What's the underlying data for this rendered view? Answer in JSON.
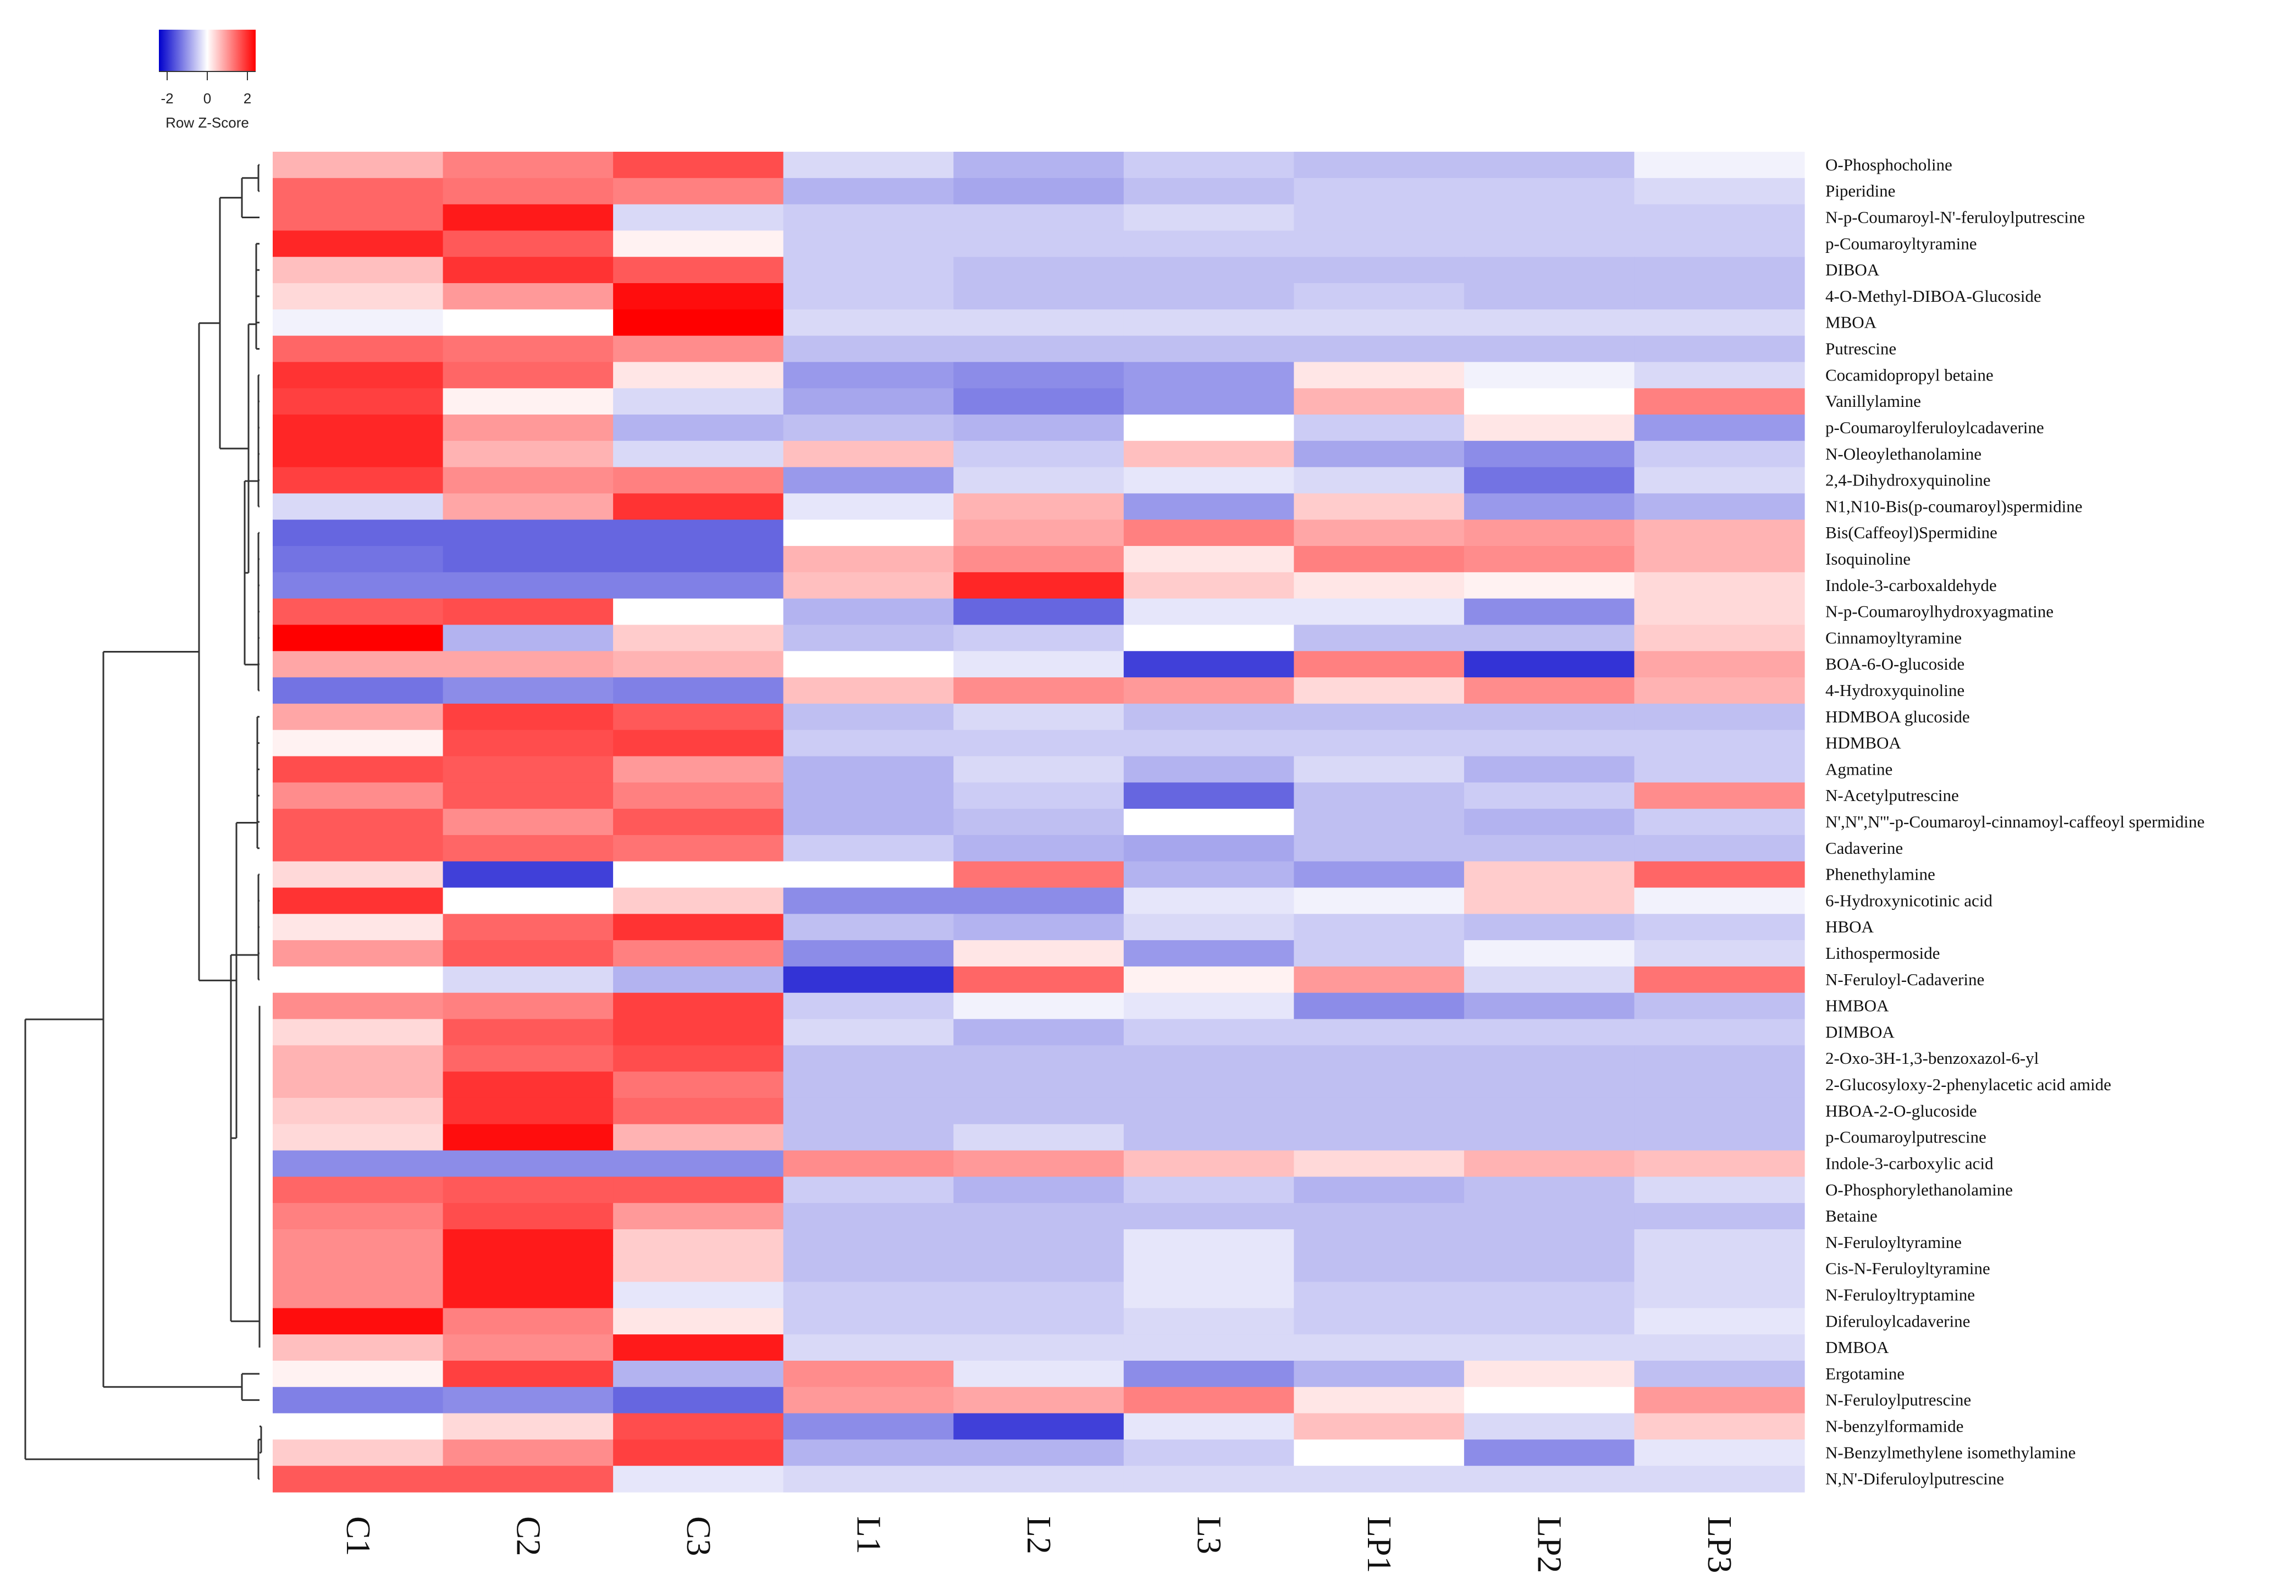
{
  "chart_data": {
    "type": "heatmap",
    "columns": [
      "C1",
      "C2",
      "C3",
      "L1",
      "L2",
      "L3",
      "LP1",
      "LP2",
      "LP3"
    ],
    "rows": [
      "O-Phosphocholine",
      "Piperidine",
      "N-p-Coumaroyl-N'-feruloylputrescine",
      "p-Coumaroyltyramine",
      "DIBOA",
      "4-O-Methyl-DIBOA-Glucoside",
      "MBOA",
      "Putrescine",
      "Cocamidopropyl betaine",
      "Vanillylamine",
      "p-Coumaroylferuloylcadaverine",
      "N-Oleoylethanolamine",
      "2,4-Dihydroxyquinoline",
      "N1,N10-Bis(p-coumaroyl)spermidine",
      "Bis(Caffeoyl)Spermidine",
      "Isoquinoline",
      "Indole-3-carboxaldehyde",
      "N-p-Coumaroylhydroxyagmatine",
      "Cinnamoyltyramine",
      "BOA-6-O-glucoside",
      "4-Hydroxyquinoline",
      "HDMBOA glucoside",
      "HDMBOA",
      "Agmatine",
      "N-Acetylputrescine",
      "N',N'',N'''-p-Coumaroyl-cinnamoyl-caffeoyl spermidine",
      "Cadaverine",
      "Phenethylamine",
      "6-Hydroxynicotinic acid",
      "HBOA",
      "Lithospermoside",
      "N-Feruloyl-Cadaverine",
      "HMBOA",
      "DIMBOA",
      "2-Oxo-3H-1,3-benzoxazol-6-yl",
      "2-Glucosyloxy-2-phenylacetic acid amide",
      "HBOA-2-O-glucoside",
      "p-Coumaroylputrescine",
      "Indole-3-carboxylic acid",
      "O-Phosphorylethanolamine",
      "Betaine",
      "N-Feruloyltyramine",
      "Cis-N-Feruloyltyramine",
      "N-Feruloyltryptamine",
      "Diferuloylcadaverine",
      "DMBOA",
      "Ergotamine",
      "N-Feruloylputrescine",
      "N-benzylformamide",
      "N-Benzylmethylene isomethylamine",
      "N,N'-Diferuloylputrescine"
    ],
    "values": [
      [
        0.6,
        1.0,
        1.4,
        -0.3,
        -0.6,
        -0.4,
        -0.5,
        -0.5,
        -0.1
      ],
      [
        1.2,
        1.1,
        1.0,
        -0.6,
        -0.7,
        -0.5,
        -0.4,
        -0.4,
        -0.3
      ],
      [
        1.2,
        1.8,
        -0.3,
        -0.4,
        -0.4,
        -0.3,
        -0.4,
        -0.4,
        -0.4
      ],
      [
        1.7,
        1.3,
        0.1,
        -0.4,
        -0.4,
        -0.4,
        -0.4,
        -0.4,
        -0.4
      ],
      [
        0.5,
        1.6,
        1.3,
        -0.4,
        -0.5,
        -0.5,
        -0.5,
        -0.5,
        -0.5
      ],
      [
        0.3,
        0.8,
        1.9,
        -0.4,
        -0.5,
        -0.5,
        -0.4,
        -0.5,
        -0.5
      ],
      [
        -0.1,
        0.0,
        2.0,
        -0.3,
        -0.3,
        -0.3,
        -0.3,
        -0.3,
        -0.3
      ],
      [
        1.2,
        1.1,
        0.9,
        -0.5,
        -0.5,
        -0.5,
        -0.5,
        -0.5,
        -0.5
      ],
      [
        1.6,
        1.2,
        0.2,
        -0.8,
        -0.9,
        -0.8,
        0.2,
        -0.1,
        -0.3
      ],
      [
        1.5,
        0.1,
        -0.3,
        -0.7,
        -1.0,
        -0.8,
        0.6,
        0.0,
        1.0
      ],
      [
        1.7,
        0.8,
        -0.6,
        -0.5,
        -0.6,
        0.0,
        -0.4,
        0.2,
        -0.8
      ],
      [
        1.7,
        0.6,
        -0.3,
        0.5,
        -0.4,
        0.5,
        -0.7,
        -0.9,
        -0.4
      ],
      [
        1.5,
        0.9,
        1.0,
        -0.8,
        -0.3,
        -0.2,
        -0.3,
        -1.1,
        -0.3
      ],
      [
        -0.3,
        0.7,
        1.6,
        -0.2,
        0.6,
        -0.8,
        0.4,
        -0.8,
        -0.6
      ],
      [
        -1.2,
        -1.2,
        -1.2,
        0.0,
        0.7,
        1.0,
        0.7,
        0.8,
        0.6
      ],
      [
        -1.1,
        -1.2,
        -1.2,
        0.6,
        0.9,
        0.2,
        1.0,
        0.9,
        0.6
      ],
      [
        -1.0,
        -1.0,
        -1.0,
        0.5,
        1.7,
        0.4,
        0.2,
        0.1,
        0.3
      ],
      [
        1.3,
        1.4,
        0.0,
        -0.6,
        -1.2,
        -0.2,
        -0.2,
        -0.9,
        0.3
      ],
      [
        2.0,
        -0.6,
        0.4,
        -0.5,
        -0.4,
        0.0,
        -0.5,
        -0.5,
        0.4
      ],
      [
        0.7,
        0.7,
        0.6,
        0.0,
        -0.2,
        -1.5,
        1.0,
        -1.6,
        0.7
      ],
      [
        -1.1,
        -0.9,
        -1.0,
        0.5,
        0.9,
        0.8,
        0.3,
        0.9,
        0.6
      ],
      [
        0.7,
        1.5,
        1.3,
        -0.5,
        -0.3,
        -0.5,
        -0.5,
        -0.5,
        -0.5
      ],
      [
        0.1,
        1.4,
        1.5,
        -0.4,
        -0.4,
        -0.4,
        -0.4,
        -0.4,
        -0.4
      ],
      [
        1.4,
        1.3,
        0.8,
        -0.6,
        -0.3,
        -0.6,
        -0.3,
        -0.6,
        -0.4
      ],
      [
        0.9,
        1.3,
        1.0,
        -0.6,
        -0.4,
        -1.2,
        -0.5,
        -0.4,
        0.9
      ],
      [
        1.3,
        0.9,
        1.3,
        -0.6,
        -0.5,
        0.0,
        -0.5,
        -0.6,
        -0.4
      ],
      [
        1.3,
        1.2,
        1.1,
        -0.4,
        -0.6,
        -0.7,
        -0.5,
        -0.5,
        -0.5
      ],
      [
        0.3,
        -1.5,
        0.0,
        0.0,
        1.1,
        -0.6,
        -0.8,
        0.4,
        1.2
      ],
      [
        1.6,
        0.0,
        0.4,
        -0.9,
        -0.9,
        -0.2,
        -0.1,
        0.4,
        -0.1
      ],
      [
        0.2,
        1.2,
        1.6,
        -0.5,
        -0.6,
        -0.3,
        -0.4,
        -0.5,
        -0.4
      ],
      [
        0.8,
        1.3,
        1.0,
        -0.9,
        0.2,
        -0.8,
        -0.4,
        -0.1,
        -0.3
      ],
      [
        0.0,
        -0.3,
        -0.6,
        -1.6,
        1.2,
        0.1,
        0.8,
        -0.3,
        1.1
      ],
      [
        0.9,
        1.0,
        1.5,
        -0.4,
        -0.1,
        -0.2,
        -0.9,
        -0.7,
        -0.5
      ],
      [
        0.3,
        1.3,
        1.5,
        -0.3,
        -0.6,
        -0.4,
        -0.4,
        -0.4,
        -0.4
      ],
      [
        0.6,
        1.2,
        1.4,
        -0.5,
        -0.5,
        -0.5,
        -0.5,
        -0.5,
        -0.5
      ],
      [
        0.6,
        1.6,
        1.1,
        -0.5,
        -0.5,
        -0.5,
        -0.5,
        -0.5,
        -0.5
      ],
      [
        0.4,
        1.6,
        1.2,
        -0.5,
        -0.5,
        -0.5,
        -0.5,
        -0.5,
        -0.5
      ],
      [
        0.3,
        1.9,
        0.6,
        -0.5,
        -0.3,
        -0.5,
        -0.5,
        -0.5,
        -0.5
      ],
      [
        -0.9,
        -0.9,
        -0.9,
        0.9,
        0.8,
        0.5,
        0.3,
        0.6,
        0.5
      ],
      [
        1.2,
        1.3,
        1.3,
        -0.4,
        -0.6,
        -0.4,
        -0.6,
        -0.5,
        -0.3
      ],
      [
        1.0,
        1.4,
        0.8,
        -0.5,
        -0.5,
        -0.5,
        -0.5,
        -0.5,
        -0.5
      ],
      [
        0.9,
        1.8,
        0.4,
        -0.5,
        -0.5,
        -0.2,
        -0.5,
        -0.5,
        -0.3
      ],
      [
        0.9,
        1.8,
        0.4,
        -0.5,
        -0.5,
        -0.2,
        -0.5,
        -0.5,
        -0.3
      ],
      [
        0.9,
        1.8,
        -0.2,
        -0.4,
        -0.4,
        -0.2,
        -0.4,
        -0.4,
        -0.3
      ],
      [
        1.9,
        1.0,
        0.2,
        -0.4,
        -0.4,
        -0.3,
        -0.4,
        -0.4,
        -0.2
      ],
      [
        0.5,
        0.9,
        1.8,
        -0.3,
        -0.3,
        -0.3,
        -0.3,
        -0.3,
        -0.3
      ],
      [
        0.1,
        1.5,
        -0.6,
        0.9,
        -0.2,
        -0.9,
        -0.6,
        0.2,
        -0.5
      ],
      [
        -1.0,
        -0.9,
        -1.2,
        0.8,
        0.7,
        1.0,
        0.2,
        0.0,
        0.8
      ],
      [
        0.0,
        0.3,
        1.4,
        -0.9,
        -1.5,
        -0.2,
        0.5,
        -0.3,
        0.4
      ],
      [
        0.4,
        0.9,
        1.5,
        -0.6,
        -0.6,
        -0.4,
        0.0,
        -0.9,
        -0.2
      ],
      [
        1.3,
        1.3,
        -0.2,
        -0.3,
        -0.3,
        -0.3,
        -0.3,
        -0.3,
        -0.3
      ]
    ],
    "color_key": {
      "label": "Row Z-Score",
      "ticks": [
        "-2",
        "0",
        "2"
      ],
      "low_color": "#0000cc",
      "mid_color": "#ffffff",
      "high_color": "#ff0000"
    },
    "row_dendrogram": true,
    "row_label_position": "right",
    "col_label_position": "bottom-rotated"
  }
}
